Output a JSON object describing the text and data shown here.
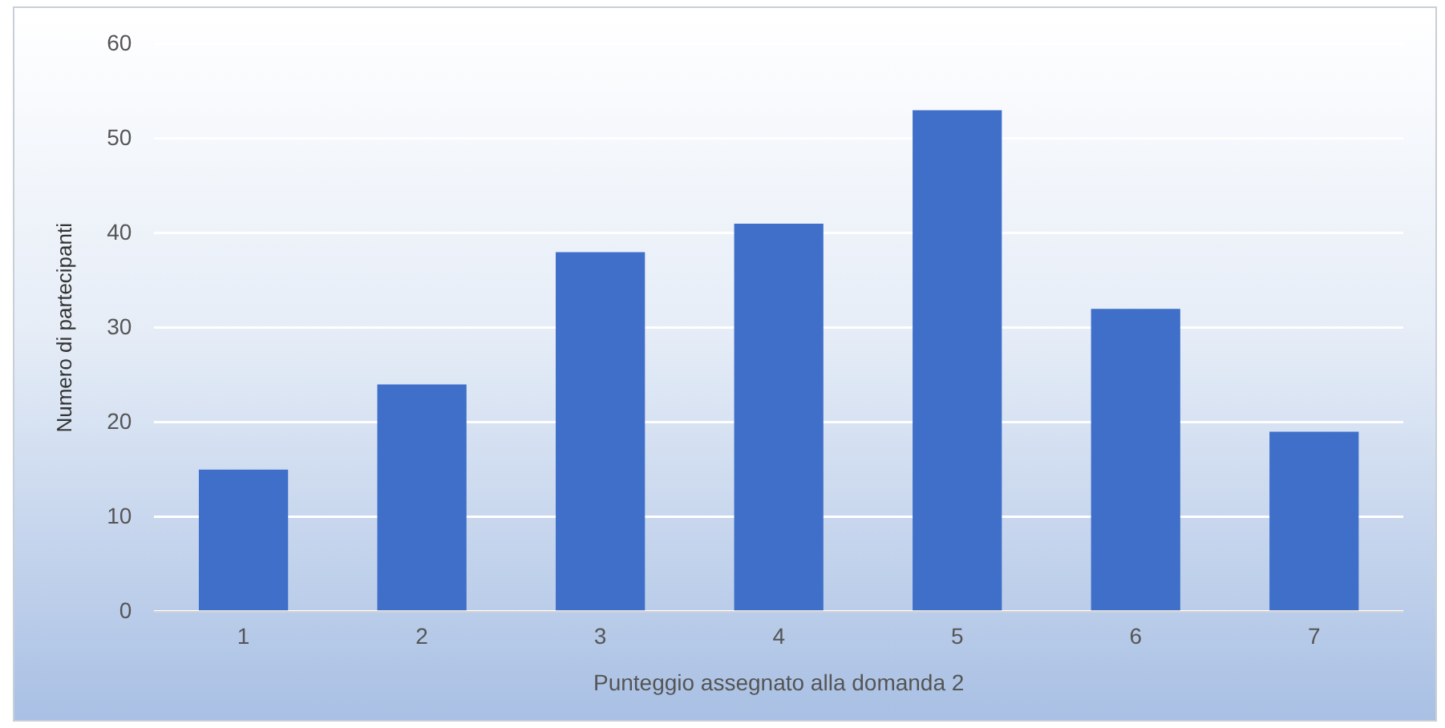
{
  "chart_data": {
    "type": "bar",
    "xlabel": "Punteggio assegnato alla domanda 2",
    "ylabel": "Numero di partecipanti",
    "categories": [
      "1",
      "2",
      "3",
      "4",
      "5",
      "6",
      "7"
    ],
    "values": [
      15,
      24,
      38,
      41,
      53,
      32,
      19
    ],
    "color": "#3f6fc8",
    "ylim": [
      0,
      60
    ],
    "yticks": [
      0,
      10,
      20,
      30,
      40,
      50,
      60
    ],
    "grid": "y"
  }
}
